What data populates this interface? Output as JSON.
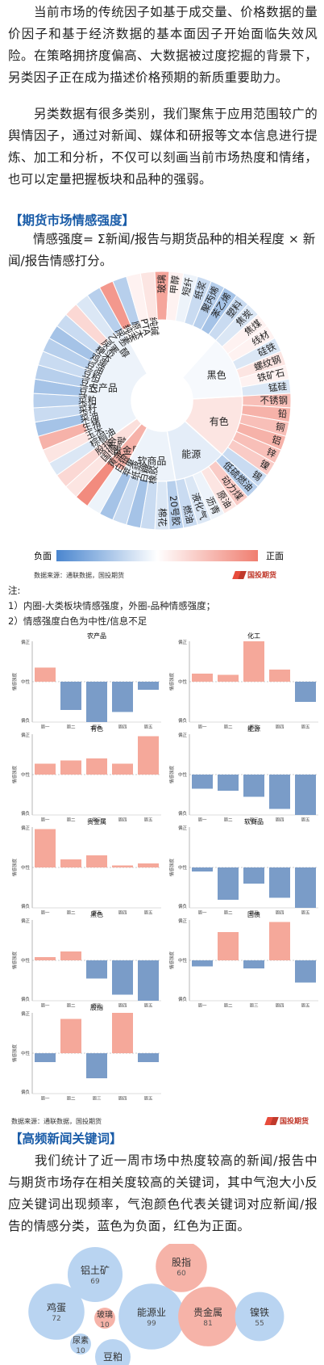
{
  "intro": {
    "p1": "　　当前市场的传统因子如基于成交量、价格数据的量价因子和基于经济数据的基本面因子开始面临失效风险。在策略拥挤度偏高、大数据被过度挖掘的背景下，另类因子正在成为描述价格预期的新质重要助力。",
    "p2": "　　另类数据有很多类别，我们聚焦于应用范围较广的舆情因子，通过对新闻、媒体和研报等文本信息进行提炼、加工和分析，不仅可以刻画当前市场热度和情绪，也可以定量把握板块和品种的强弱。"
  },
  "section1": {
    "heading": "【期货市场情感强度】",
    "formula": "　　情感强度= Σ新闻/报告与期货品种的相关程度 × 新闻/报告情感打分。",
    "legend_neg": "负面",
    "legend_pos": "正面",
    "source": "数据来源：通联数据，国投期货",
    "logo": "国投期货",
    "notes": [
      "注:",
      "1）内圈-大类板块情感强度，外圈-品种情感强度；",
      "2）情感强度白色为中性/信息不足"
    ]
  },
  "bar_source": "数据来源：通联数据，国投期货",
  "bar_axis": {
    "ylabel": "情感强度",
    "top": "偏正",
    "mid": "中性",
    "bottom": "偏负"
  },
  "section2": {
    "heading": "【高频新闻关键词】",
    "text": "　　我们统计了近一周市场中热度较高的新闻/报告中与期货市场存在相关度较高的关键词，其中气泡大小反应关键词出现频率，气泡颜色代表关键词对应新闻/报告的情感分类，蓝色为负面，红色为正面。"
  },
  "colors": {
    "neg": "#4a86cf",
    "pos": "#f07e70",
    "bar_neg": "#7a9cc8",
    "bar_pos": "#f5a89a",
    "heading": "#1a5ca8"
  },
  "chart_data": [
    {
      "type": "sunburst",
      "title": "",
      "inner": [
        {
          "name": "化工",
          "value": 0.1
        },
        {
          "name": "农产品",
          "value": -0.1
        },
        {
          "name": "金融",
          "value": 0.25
        },
        {
          "name": "贵金属",
          "value": 0.6
        },
        {
          "name": "软商品",
          "value": -0.1
        },
        {
          "name": "能源",
          "value": -0.15
        },
        {
          "name": "有色",
          "value": 0.2
        },
        {
          "name": "黑色",
          "value": -0.05
        }
      ],
      "outer": [
        {
          "name": "原木",
          "group": "化工",
          "value": -0.4
        },
        {
          "name": "PTA",
          "group": "化工",
          "value": 0.1
        },
        {
          "name": "纯碱",
          "group": "化工",
          "value": 0.2
        },
        {
          "name": "玻璃",
          "group": "化工",
          "value": 0.7
        },
        {
          "name": "甲醇",
          "group": "化工",
          "value": 0.1
        },
        {
          "name": "短纤",
          "group": "化工",
          "value": -0.1
        },
        {
          "name": "纸浆",
          "group": "化工",
          "value": -0.3
        },
        {
          "name": "聚丙烯",
          "group": "化工",
          "value": -0.4
        },
        {
          "name": "苯乙烯",
          "group": "化工",
          "value": -0.5
        },
        {
          "name": "塑料",
          "group": "化工",
          "value": -0.3
        },
        {
          "name": "焦炭",
          "group": "黑色",
          "value": -0.2
        },
        {
          "name": "焦煤",
          "group": "黑色",
          "value": 0.1
        },
        {
          "name": "线材",
          "group": "黑色",
          "value": 0.1
        },
        {
          "name": "硅铁",
          "group": "黑色",
          "value": -0.2
        },
        {
          "name": "螺纹钢",
          "group": "黑色",
          "value": 0.2
        },
        {
          "name": "铁矿石",
          "group": "黑色",
          "value": 0.1
        },
        {
          "name": "锰硅",
          "group": "黑色",
          "value": -0.2
        },
        {
          "name": "不锈钢",
          "group": "有色",
          "value": 0.5
        },
        {
          "name": "铅",
          "group": "有色",
          "value": 0.6
        },
        {
          "name": "铜",
          "group": "有色",
          "value": 0.5
        },
        {
          "name": "铝",
          "group": "有色",
          "value": 0.6
        },
        {
          "name": "锌",
          "group": "有色",
          "value": 0.5
        },
        {
          "name": "镍",
          "group": "有色",
          "value": 0.4
        },
        {
          "name": "锡",
          "group": "有色",
          "value": -0.3
        },
        {
          "name": "低硫燃油",
          "group": "能源",
          "value": -0.4
        },
        {
          "name": "动力煤",
          "group": "能源",
          "value": 0.4
        },
        {
          "name": "原油",
          "group": "能源",
          "value": 0.2
        },
        {
          "name": "沥青",
          "group": "能源",
          "value": -0.1
        },
        {
          "name": "液化气",
          "group": "能源",
          "value": -0.2
        },
        {
          "name": "燃油",
          "group": "能源",
          "value": -0.3
        },
        {
          "name": "20号胶",
          "group": "软商品",
          "value": -0.4
        },
        {
          "name": "棉花",
          "group": "软商品",
          "value": -0.2
        },
        {
          "name": "橡胶",
          "group": "软商品",
          "value": -0.3
        },
        {
          "name": "白糖",
          "group": "软商品",
          "value": -0.5
        },
        {
          "name": "纸浆",
          "group": "软商品",
          "value": -0.3
        },
        {
          "name": "苹果",
          "group": "软商品",
          "value": -0.5
        },
        {
          "name": "白银",
          "group": "贵金属",
          "value": -0.1
        },
        {
          "name": "黄金",
          "group": "贵金属",
          "value": 0.9
        },
        {
          "name": "国债",
          "group": "金融",
          "value": 0.2
        },
        {
          "name": "股指",
          "group": "金融",
          "value": 0.3
        },
        {
          "name": "棕榈油",
          "group": "农产品",
          "value": -0.2
        },
        {
          "name": "玉米",
          "group": "农产品",
          "value": 0.2
        },
        {
          "name": "生猪",
          "group": "农产品",
          "value": 0.6
        },
        {
          "name": "菜油",
          "group": "农产品",
          "value": -0.5
        },
        {
          "name": "菜籽",
          "group": "农产品",
          "value": -0.3
        },
        {
          "name": "菜粕",
          "group": "农产品",
          "value": -0.4
        },
        {
          "name": "豆一",
          "group": "农产品",
          "value": -0.5
        },
        {
          "name": "豆二",
          "group": "农产品",
          "value": -0.4
        },
        {
          "name": "豆粕",
          "group": "农产品",
          "value": -0.3
        },
        {
          "name": "豆油",
          "group": "农产品",
          "value": -0.4
        },
        {
          "name": "鸡蛋",
          "group": "农产品",
          "value": -0.5
        },
        {
          "name": "粳米",
          "group": "农产品",
          "value": -0.3
        },
        {
          "name": "尿素",
          "group": "农产品",
          "value": 0.3
        },
        {
          "name": "乙二醇",
          "group": "农产品",
          "value": -0.2
        },
        {
          "name": "尿素",
          "group": "农产品",
          "value": -0.4
        },
        {
          "name": "纯苯",
          "group": "化工",
          "value": 0.8
        }
      ]
    },
    {
      "type": "bar",
      "title": "农产品",
      "categories": [
        "周一",
        "周二",
        "周三",
        "周四",
        "周五"
      ],
      "values": [
        0.35,
        -0.7,
        -1.0,
        -0.75,
        -0.2
      ],
      "ylim": [
        -1,
        1
      ]
    },
    {
      "type": "bar",
      "title": "化工",
      "categories": [
        "周一",
        "周二",
        "周三",
        "周四",
        "周五"
      ],
      "values": [
        0.2,
        0.17,
        1.0,
        0.3,
        -0.5
      ],
      "ylim": [
        -1,
        1
      ]
    },
    {
      "type": "bar",
      "title": "有色",
      "categories": [
        "周一",
        "周二",
        "周三",
        "周四",
        "周五"
      ],
      "values": [
        0.27,
        0.35,
        0.4,
        0.27,
        0.95
      ],
      "ylim": [
        -1,
        1
      ]
    },
    {
      "type": "bar",
      "title": "能源",
      "categories": [
        "周一",
        "周二",
        "周三",
        "周四",
        "周五"
      ],
      "values": [
        -0.35,
        -0.4,
        -0.55,
        -0.85,
        -1.0
      ],
      "ylim": [
        -1,
        1
      ]
    },
    {
      "type": "bar",
      "title": "贵金属",
      "categories": [
        "周一",
        "周二",
        "周三",
        "周四",
        "周五"
      ],
      "values": [
        0.95,
        0.2,
        0.3,
        0.05,
        0.1
      ],
      "ylim": [
        -1,
        1
      ]
    },
    {
      "type": "bar",
      "title": "软商品",
      "categories": [
        "周一",
        "周二",
        "周三",
        "周四",
        "周五"
      ],
      "values": [
        -0.1,
        -0.8,
        -0.4,
        -0.75,
        -1.0
      ],
      "ylim": [
        -1,
        1
      ]
    },
    {
      "type": "bar",
      "title": "黑色",
      "categories": [
        "周一",
        "周二",
        "周三",
        "周四",
        "周五"
      ],
      "values": [
        0.08,
        0.22,
        -0.45,
        -0.85,
        -1.0
      ],
      "ylim": [
        -1,
        1
      ]
    },
    {
      "type": "bar",
      "title": "国债",
      "categories": [
        "周一",
        "周二",
        "周三",
        "周四",
        "周五"
      ],
      "values": [
        -0.15,
        0.7,
        -0.2,
        0.95,
        -0.55
      ],
      "ylim": [
        -1,
        1
      ]
    },
    {
      "type": "bar",
      "title": "股指",
      "categories": [
        "周一",
        "周二",
        "周三",
        "周四",
        "周五"
      ],
      "values": [
        -0.22,
        0.85,
        -0.62,
        1.0,
        -0.22
      ],
      "ylim": [
        -1,
        1
      ]
    },
    {
      "type": "bubble",
      "bubbles": [
        {
          "name": "铝土矿",
          "count": 69,
          "sentiment": "negative"
        },
        {
          "name": "股指",
          "count": 60,
          "sentiment": "positive"
        },
        {
          "name": "鸡蛋",
          "count": 72,
          "sentiment": "negative"
        },
        {
          "name": "玻璃",
          "count": 10,
          "sentiment": "positive"
        },
        {
          "name": "能源业",
          "count": 99,
          "sentiment": "negative"
        },
        {
          "name": "贵金属",
          "count": 81,
          "sentiment": "positive"
        },
        {
          "name": "镍铁",
          "count": 55,
          "sentiment": "negative"
        },
        {
          "name": "尿素",
          "count": 10,
          "sentiment": "negative"
        },
        {
          "name": "豆粕",
          "count": null,
          "sentiment": "negative"
        }
      ]
    }
  ]
}
